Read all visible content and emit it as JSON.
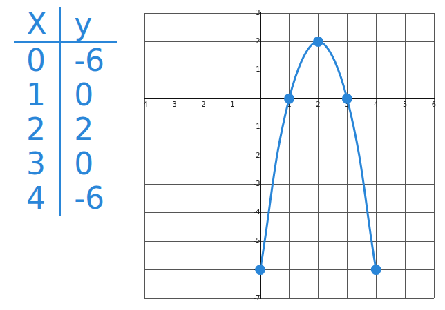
{
  "chart_data": {
    "type": "line",
    "x": [
      0,
      1,
      2,
      3,
      4
    ],
    "values": [
      -6,
      0,
      2,
      0,
      -6
    ],
    "color": "#2a86d8",
    "marker": "circle",
    "line_style": "solid",
    "xlim": [
      -4,
      6
    ],
    "xticks": [
      -4,
      -3,
      -2,
      -1,
      1,
      2,
      3,
      4,
      5,
      6
    ],
    "ylim": [
      -7,
      3
    ],
    "yticks": [
      -7,
      -6,
      -5,
      -4,
      -3,
      -2,
      -1,
      1,
      2,
      3
    ],
    "grid": true
  },
  "table": {
    "columns": [
      "X",
      "y"
    ]
  }
}
